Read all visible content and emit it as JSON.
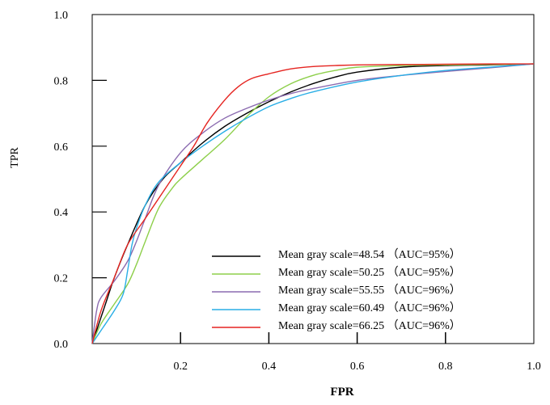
{
  "chart_data": {
    "type": "line",
    "title": "",
    "xlabel": "FPR",
    "ylabel": "TPR",
    "xlim": [
      0.0,
      1.0
    ],
    "ylim": [
      0.0,
      1.0
    ],
    "x_ticks": [
      "0.2",
      "0.4",
      "0.6",
      "0.8",
      "1.0"
    ],
    "y_ticks": [
      "0.0",
      "0.2",
      "0.4",
      "0.6",
      "0.8",
      "1.0"
    ],
    "grid": false,
    "legend_position": "bottom-right",
    "series": [
      {
        "name": "Mean gray scale=48.54 （AUC=95%）",
        "color": "#000000",
        "x": [
          0.0,
          0.03,
          0.05,
          0.08,
          0.12,
          0.16,
          0.2,
          0.25,
          0.3,
          0.35,
          0.4,
          0.45,
          0.5,
          0.55,
          0.6,
          0.7,
          0.8,
          0.9,
          1.0
        ],
        "y": [
          0.0,
          0.12,
          0.2,
          0.3,
          0.42,
          0.5,
          0.55,
          0.61,
          0.66,
          0.7,
          0.735,
          0.765,
          0.79,
          0.81,
          0.825,
          0.84,
          0.845,
          0.847,
          0.85
        ]
      },
      {
        "name": "Mean gray scale=50.25 （AUC=95%）",
        "color": "#8dcf4a",
        "x": [
          0.0,
          0.02,
          0.05,
          0.08,
          0.1,
          0.12,
          0.15,
          0.18,
          0.2,
          0.25,
          0.3,
          0.35,
          0.4,
          0.45,
          0.5,
          0.55,
          0.6,
          0.7,
          0.8,
          0.9,
          1.0
        ],
        "y": [
          0.0,
          0.06,
          0.12,
          0.18,
          0.24,
          0.31,
          0.41,
          0.47,
          0.5,
          0.56,
          0.62,
          0.69,
          0.75,
          0.79,
          0.815,
          0.83,
          0.84,
          0.845,
          0.847,
          0.848,
          0.85
        ]
      },
      {
        "name": "Mean gray scale=55.55 （AUC=96%）",
        "color": "#8b6bb0",
        "x": [
          0.0,
          0.01,
          0.02,
          0.05,
          0.08,
          0.1,
          0.12,
          0.15,
          0.2,
          0.25,
          0.3,
          0.35,
          0.4,
          0.45,
          0.5,
          0.6,
          0.7,
          0.8,
          0.9,
          1.0
        ],
        "y": [
          0.0,
          0.1,
          0.14,
          0.19,
          0.25,
          0.31,
          0.38,
          0.48,
          0.58,
          0.64,
          0.685,
          0.715,
          0.74,
          0.76,
          0.775,
          0.8,
          0.815,
          0.827,
          0.838,
          0.85
        ]
      },
      {
        "name": "Mean gray scale=60.49 （AUC=96%）",
        "color": "#29aee6",
        "x": [
          0.0,
          0.02,
          0.05,
          0.07,
          0.08,
          0.09,
          0.1,
          0.12,
          0.15,
          0.2,
          0.25,
          0.3,
          0.35,
          0.4,
          0.45,
          0.5,
          0.6,
          0.7,
          0.8,
          0.9,
          1.0
        ],
        "y": [
          0.0,
          0.04,
          0.1,
          0.15,
          0.22,
          0.3,
          0.35,
          0.42,
          0.49,
          0.55,
          0.6,
          0.645,
          0.685,
          0.72,
          0.745,
          0.765,
          0.795,
          0.815,
          0.83,
          0.84,
          0.85
        ]
      },
      {
        "name": "Mean gray scale=66.25 （AUC=96%）",
        "color": "#e52420",
        "x": [
          0.0,
          0.02,
          0.05,
          0.08,
          0.12,
          0.16,
          0.2,
          0.23,
          0.26,
          0.3,
          0.33,
          0.36,
          0.4,
          0.45,
          0.5,
          0.55,
          0.6,
          0.7,
          0.8,
          0.9,
          1.0
        ],
        "y": [
          0.0,
          0.1,
          0.2,
          0.3,
          0.38,
          0.46,
          0.54,
          0.6,
          0.67,
          0.74,
          0.78,
          0.805,
          0.82,
          0.835,
          0.842,
          0.845,
          0.847,
          0.848,
          0.849,
          0.85,
          0.85
        ]
      }
    ]
  }
}
